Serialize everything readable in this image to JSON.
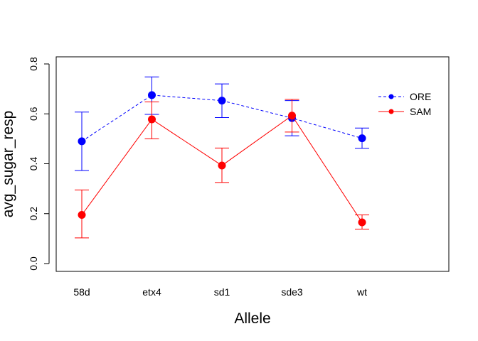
{
  "chart_data": {
    "type": "line",
    "title": "",
    "xlabel": "Allele",
    "ylabel": "avg_sugar_resp",
    "categories": [
      "58d",
      "etx4",
      "sd1",
      "sde3",
      "wt"
    ],
    "ylim": [
      -0.03,
      0.83
    ],
    "yticks": [
      "0.0",
      "0.2",
      "0.4",
      "0.6",
      "0.8"
    ],
    "grid": false,
    "legend_position": "right",
    "series": [
      {
        "name": "ORE",
        "color": "#0000ff",
        "line_style": "dashed",
        "values": [
          0.49,
          0.675,
          0.653,
          0.583,
          0.502
        ],
        "err_low": [
          0.373,
          0.598,
          0.585,
          0.512,
          0.462
        ],
        "err_high": [
          0.607,
          0.748,
          0.72,
          0.653,
          0.543
        ]
      },
      {
        "name": "SAM",
        "color": "#ff0000",
        "line_style": "solid",
        "values": [
          0.195,
          0.578,
          0.393,
          0.593,
          0.165
        ],
        "err_low": [
          0.103,
          0.5,
          0.325,
          0.527,
          0.138
        ],
        "err_high": [
          0.295,
          0.648,
          0.463,
          0.658,
          0.195
        ]
      }
    ]
  }
}
